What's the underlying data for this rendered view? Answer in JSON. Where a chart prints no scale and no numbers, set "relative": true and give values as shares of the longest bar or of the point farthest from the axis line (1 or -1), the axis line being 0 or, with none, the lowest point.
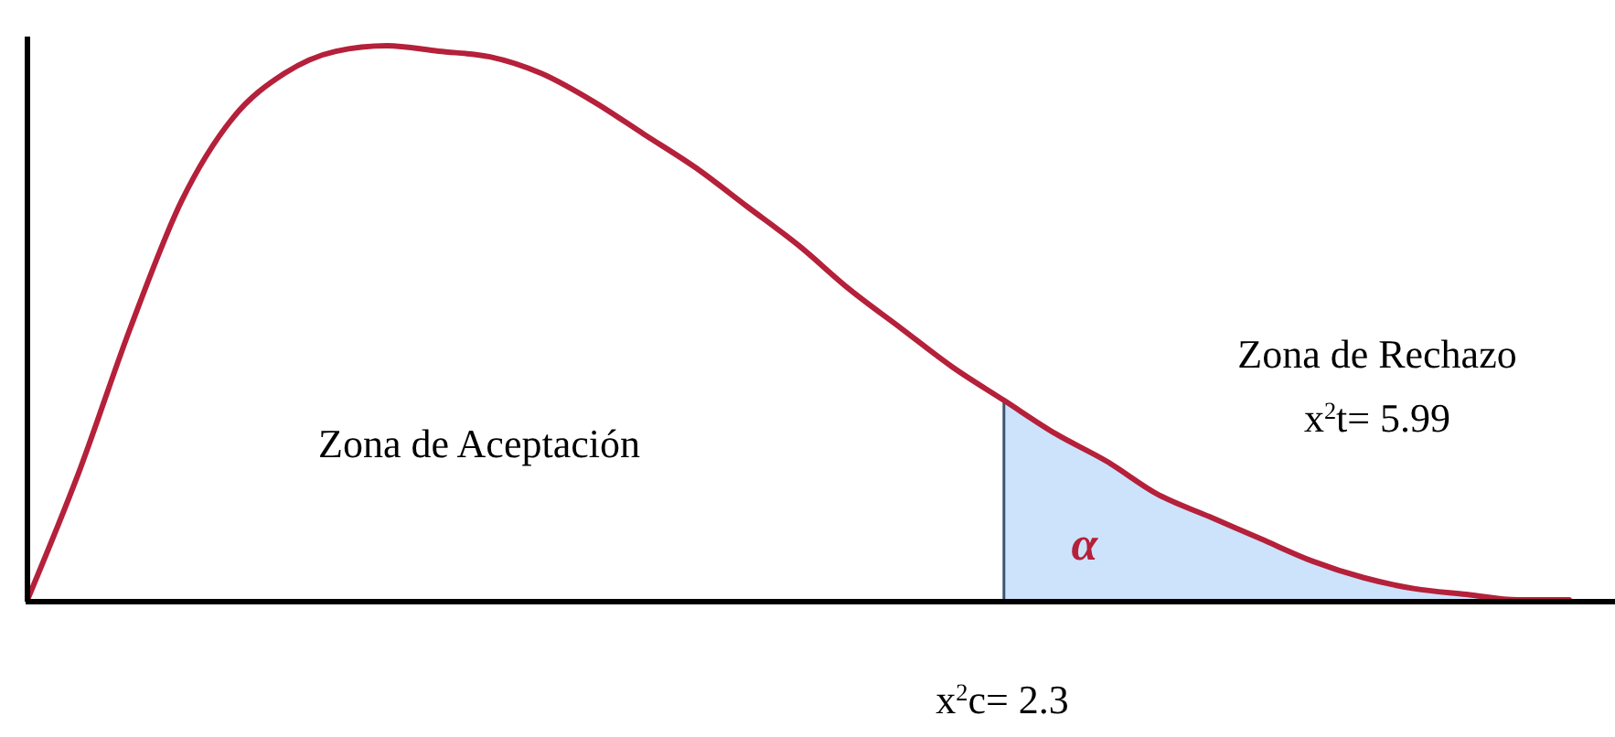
{
  "chart_data": {
    "type": "line",
    "relative": true,
    "categories": [
      null,
      null,
      null,
      null,
      null,
      null,
      null,
      null,
      null,
      null,
      null,
      null,
      null,
      null,
      null,
      null,
      null,
      null,
      null,
      null,
      null,
      null,
      null,
      null,
      null,
      null,
      null,
      null,
      null,
      null,
      null
    ],
    "series": [
      {
        "type": "area",
        "color": "#cce3fb",
        "values": [
          null,
          null,
          null,
          null,
          null,
          null,
          null,
          null,
          null,
          null,
          null,
          null,
          null,
          null,
          null,
          null,
          null,
          null,
          null,
          0.36,
          0.3,
          0.25,
          0.19,
          0.15,
          0.11,
          0.07,
          0.04,
          0.02,
          0.01,
          0,
          0
        ]
      },
      {
        "type": "line",
        "color": "#b5203a",
        "values": [
          0,
          0.23,
          0.49,
          0.72,
          0.87,
          0.95,
          0.99,
          1,
          0.99,
          0.98,
          0.95,
          0.9,
          0.84,
          0.78,
          0.71,
          0.64,
          0.56,
          0.49,
          0.42,
          0.36,
          0.3,
          0.25,
          0.19,
          0.15,
          0.11,
          0.07,
          0.04,
          0.02,
          0.01,
          0,
          0
        ]
      }
    ],
    "annotations": [
      "Zona de Aceptación",
      "Zona de Rechazo",
      "x$^{2}$t= 5.99",
      "α",
      "x$^{2}$c= 2.3"
    ]
  }
}
